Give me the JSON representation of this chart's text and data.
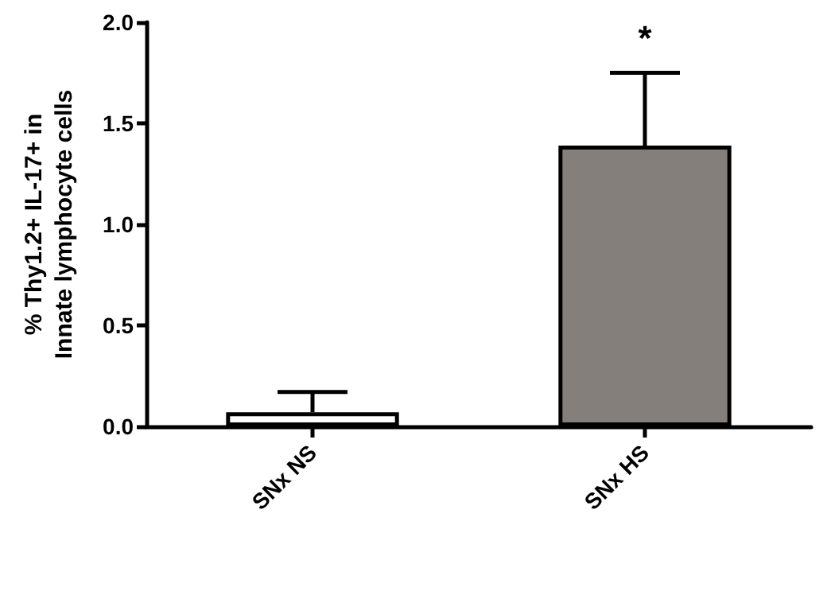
{
  "chart_data": {
    "type": "bar",
    "ylabel": "% Thy1.2+ IL-17+ in\nInnate lymphocyte cells",
    "categories": [
      "SNx NS",
      "SNx HS"
    ],
    "values": [
      0.07,
      1.39
    ],
    "colors": [
      "#ffffff",
      "#857f7b"
    ],
    "errors": [
      [
        0.07,
        0.17
      ],
      [
        1.39,
        1.75
      ]
    ],
    "ylim": [
      0,
      2
    ],
    "yticks": [
      {
        "value": 0,
        "label": "0.0"
      },
      0.5,
      {
        "value": 1,
        "label": "1.0"
      },
      1.5,
      {
        "value": 2,
        "label": "2.0"
      }
    ],
    "annotations": [
      {
        "text": "*",
        "x": "SNx HS",
        "y": 1.75
      }
    ],
    "grid": false
  }
}
